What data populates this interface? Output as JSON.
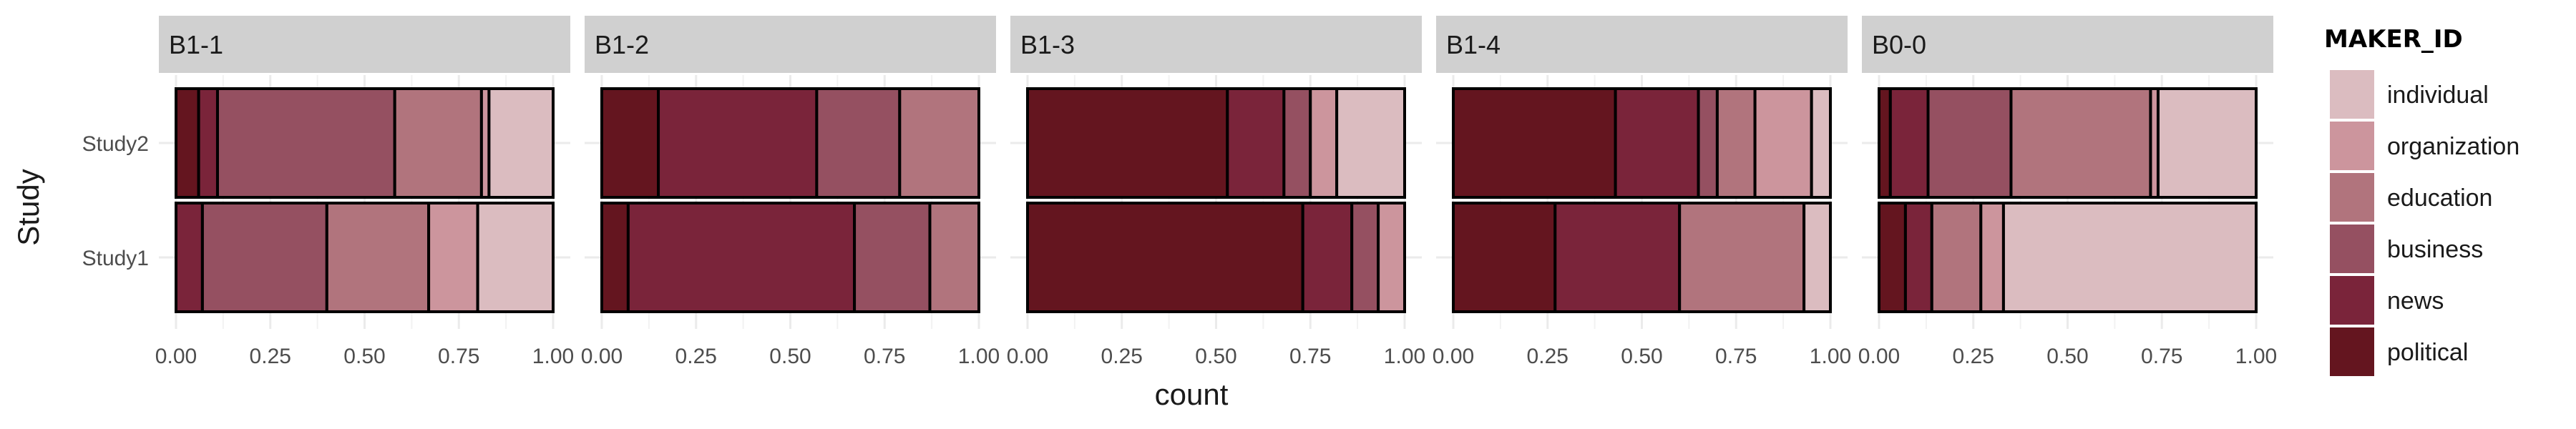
{
  "chart_data": {
    "type": "bar",
    "orientation": "horizontal",
    "stacked": "proportion",
    "xlabel": "count",
    "ylabel": "Study",
    "xlim": [
      0,
      1
    ],
    "x_ticks": [
      "0.00",
      "0.25",
      "0.50",
      "0.75",
      "1.00"
    ],
    "categories": [
      "Study2",
      "Study1"
    ],
    "grid": true,
    "legend": {
      "title": "MAKER_ID",
      "position": "right",
      "entries": [
        "individual",
        "organization",
        "education",
        "business",
        "news",
        "political"
      ]
    },
    "colors": {
      "political": "#64151f",
      "news": "#7a243a",
      "business": "#955061",
      "education": "#b1747d",
      "organization": "#cc959d",
      "individual": "#dbbcc0"
    },
    "stack_order": [
      "political",
      "news",
      "business",
      "education",
      "organization",
      "individual"
    ],
    "facets": [
      {
        "label": "B1-1",
        "bars": {
          "Study2": {
            "political": 0.06,
            "news": 0.05,
            "business": 0.47,
            "education": 0.23,
            "organization": 0.02,
            "individual": 0.17
          },
          "Study1": {
            "political": 0.0,
            "news": 0.07,
            "business": 0.33,
            "education": 0.27,
            "organization": 0.13,
            "individual": 0.2
          }
        }
      },
      {
        "label": "B1-2",
        "bars": {
          "Study2": {
            "political": 0.15,
            "news": 0.42,
            "business": 0.22,
            "education": 0.21,
            "organization": 0.0,
            "individual": 0.0
          },
          "Study1": {
            "political": 0.07,
            "news": 0.6,
            "business": 0.2,
            "education": 0.13,
            "organization": 0.0,
            "individual": 0.0
          }
        }
      },
      {
        "label": "B1-3",
        "bars": {
          "Study2": {
            "political": 0.53,
            "news": 0.15,
            "business": 0.07,
            "education": 0.0,
            "organization": 0.07,
            "individual": 0.18
          },
          "Study1": {
            "political": 0.73,
            "news": 0.13,
            "business": 0.07,
            "education": 0.0,
            "organization": 0.07,
            "individual": 0.0
          }
        }
      },
      {
        "label": "B1-4",
        "bars": {
          "Study2": {
            "political": 0.43,
            "news": 0.22,
            "business": 0.05,
            "education": 0.1,
            "organization": 0.15,
            "individual": 0.05
          },
          "Study1": {
            "political": 0.27,
            "news": 0.33,
            "business": 0.0,
            "education": 0.33,
            "organization": 0.0,
            "individual": 0.07
          }
        }
      },
      {
        "label": "B0-0",
        "bars": {
          "Study2": {
            "political": 0.03,
            "news": 0.1,
            "business": 0.22,
            "education": 0.37,
            "organization": 0.02,
            "individual": 0.26
          },
          "Study1": {
            "political": 0.07,
            "news": 0.07,
            "business": 0.0,
            "education": 0.13,
            "organization": 0.06,
            "individual": 0.67
          }
        }
      }
    ]
  }
}
